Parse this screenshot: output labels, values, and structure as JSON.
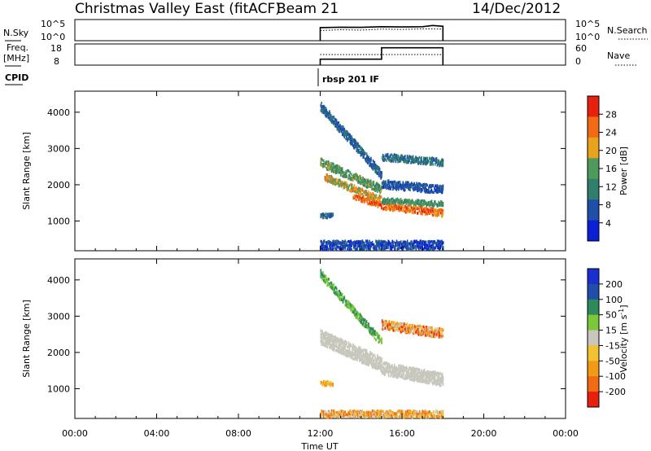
{
  "header": {
    "station": "Christmas Valley East (fitACF)",
    "beam": "Beam 21",
    "date": "14/Dec/2012"
  },
  "chart_data": [
    {
      "type": "line",
      "panel": "noise",
      "left_label": "N.Sky",
      "right_label": "N.Search",
      "left_ticks": [
        "10^5",
        "10^0"
      ],
      "right_ticks": [
        "10^5",
        "10^0"
      ],
      "series": [
        {
          "style": "solid",
          "x": [
            12.0,
            12.0,
            13.0,
            14.0,
            15.0,
            16.0,
            17.0,
            17.5,
            18.0,
            18.0
          ],
          "y": [
            0.0,
            0.62,
            0.64,
            0.63,
            0.66,
            0.65,
            0.66,
            0.72,
            0.68,
            0.0
          ]
        },
        {
          "style": "dotted",
          "x": [
            12.0,
            13.0,
            14.0,
            15.0,
            16.0,
            17.0,
            18.0
          ],
          "y": [
            0.48,
            0.52,
            0.5,
            0.55,
            0.53,
            0.56,
            0.55
          ]
        }
      ]
    },
    {
      "type": "line",
      "panel": "frequency",
      "left_label": "Freq.",
      "left_unit": "[MHz]",
      "right_label": "Nave",
      "left_ticks": [
        "18",
        "8"
      ],
      "right_ticks": [
        "60",
        "0"
      ],
      "series": [
        {
          "style": "solid",
          "x": [
            12.0,
            12.0,
            15.0,
            15.0,
            18.0,
            18.0
          ],
          "y": [
            0.0,
            0.28,
            0.28,
            0.82,
            0.82,
            0.0
          ]
        },
        {
          "style": "dotted",
          "x": [
            12.0,
            18.0
          ],
          "y": [
            0.5,
            0.5
          ]
        }
      ]
    },
    {
      "type": "text",
      "panel": "cpid",
      "label": "CPID",
      "program": "rbsp 201 IF",
      "time": 12.0
    },
    {
      "type": "heatmap",
      "panel": "power",
      "ylabel": "Slant Range [km]",
      "yticks": [
        1000,
        2000,
        3000,
        4000
      ],
      "ylim": [
        180,
        4580
      ],
      "colorbar_label": "Power [dB]",
      "colorbar_ticks": [
        4,
        8,
        12,
        16,
        20,
        24,
        28
      ],
      "colorbar_range": [
        0,
        32
      ],
      "colors": [
        "#0a1fd6",
        "#1f4fa8",
        "#2f7f6c",
        "#4e9a5d",
        "#e8a21b",
        "#f26b12",
        "#e8200e"
      ],
      "bands": [
        {
          "t": [
            12.0,
            15.0
          ],
          "r": [
            4200,
            2300
          ],
          "w": 250,
          "v": [
            5,
            11
          ]
        },
        {
          "t": [
            12.0,
            15.0
          ],
          "r": [
            2650,
            1900
          ],
          "w": 230,
          "v": [
            10,
            20
          ]
        },
        {
          "t": [
            12.2,
            15.0
          ],
          "r": [
            2250,
            1600
          ],
          "w": 200,
          "v": [
            14,
            26
          ]
        },
        {
          "t": [
            13.6,
            15.0
          ],
          "r": [
            1700,
            1450
          ],
          "w": 130,
          "v": [
            22,
            31
          ]
        },
        {
          "t": [
            15.0,
            18.0
          ],
          "r": [
            1450,
            1260
          ],
          "w": 200,
          "v": [
            18,
            31
          ]
        },
        {
          "t": [
            15.0,
            18.0
          ],
          "r": [
            1600,
            1500
          ],
          "w": 140,
          "v": [
            10,
            18
          ]
        },
        {
          "t": [
            15.0,
            18.0
          ],
          "r": [
            2800,
            2650
          ],
          "w": 200,
          "v": [
            6,
            14
          ]
        },
        {
          "t": [
            15.0,
            18.0
          ],
          "r": [
            2050,
            1900
          ],
          "w": 230,
          "v": [
            4,
            10
          ]
        },
        {
          "t": [
            12.0,
            12.6
          ],
          "r": [
            1180,
            1180
          ],
          "w": 120,
          "v": [
            6,
            12
          ]
        },
        {
          "t": [
            12.0,
            18.0
          ],
          "r": [
            350,
            350
          ],
          "w": 280,
          "v": [
            2,
            10
          ]
        }
      ]
    },
    {
      "type": "heatmap",
      "panel": "velocity",
      "ylabel": "Slant Range [km]",
      "yticks": [
        1000,
        2000,
        3000,
        4000
      ],
      "ylim": [
        180,
        4580
      ],
      "colorbar_label": "Velocity [m s^-1]",
      "colorbar_ticks": [
        200,
        100,
        50,
        15,
        -15,
        -50,
        -100,
        -200
      ],
      "colors": [
        "#1a2fd0",
        "#1f4fa8",
        "#2f8a5a",
        "#7bc938",
        "#c7c7bd",
        "#f2c230",
        "#f29a18",
        "#f26b12",
        "#e8200e"
      ],
      "bands": [
        {
          "t": [
            12.0,
            15.0
          ],
          "r": [
            4200,
            2300
          ],
          "w": 220,
          "c": [
            2,
            3
          ]
        },
        {
          "t": [
            12.0,
            15.0
          ],
          "r": [
            2450,
            1700
          ],
          "w": 400,
          "c": [
            4,
            4
          ]
        },
        {
          "t": [
            15.0,
            18.0
          ],
          "r": [
            1600,
            1280
          ],
          "w": 350,
          "c": [
            4,
            4
          ]
        },
        {
          "t": [
            15.0,
            18.0
          ],
          "r": [
            2800,
            2550
          ],
          "w": 250,
          "c": [
            4,
            8
          ]
        },
        {
          "t": [
            12.0,
            12.6
          ],
          "r": [
            1180,
            1180
          ],
          "w": 120,
          "c": [
            5,
            6
          ]
        },
        {
          "t": [
            12.0,
            18.0
          ],
          "r": [
            320,
            320
          ],
          "w": 220,
          "c": [
            4,
            7
          ]
        }
      ]
    }
  ],
  "time_axis": {
    "label": "Time UT",
    "ticks": [
      "00:00",
      "04:00",
      "08:00",
      "12:00",
      "16:00",
      "20:00",
      "00:00"
    ],
    "range": [
      0,
      24
    ]
  }
}
